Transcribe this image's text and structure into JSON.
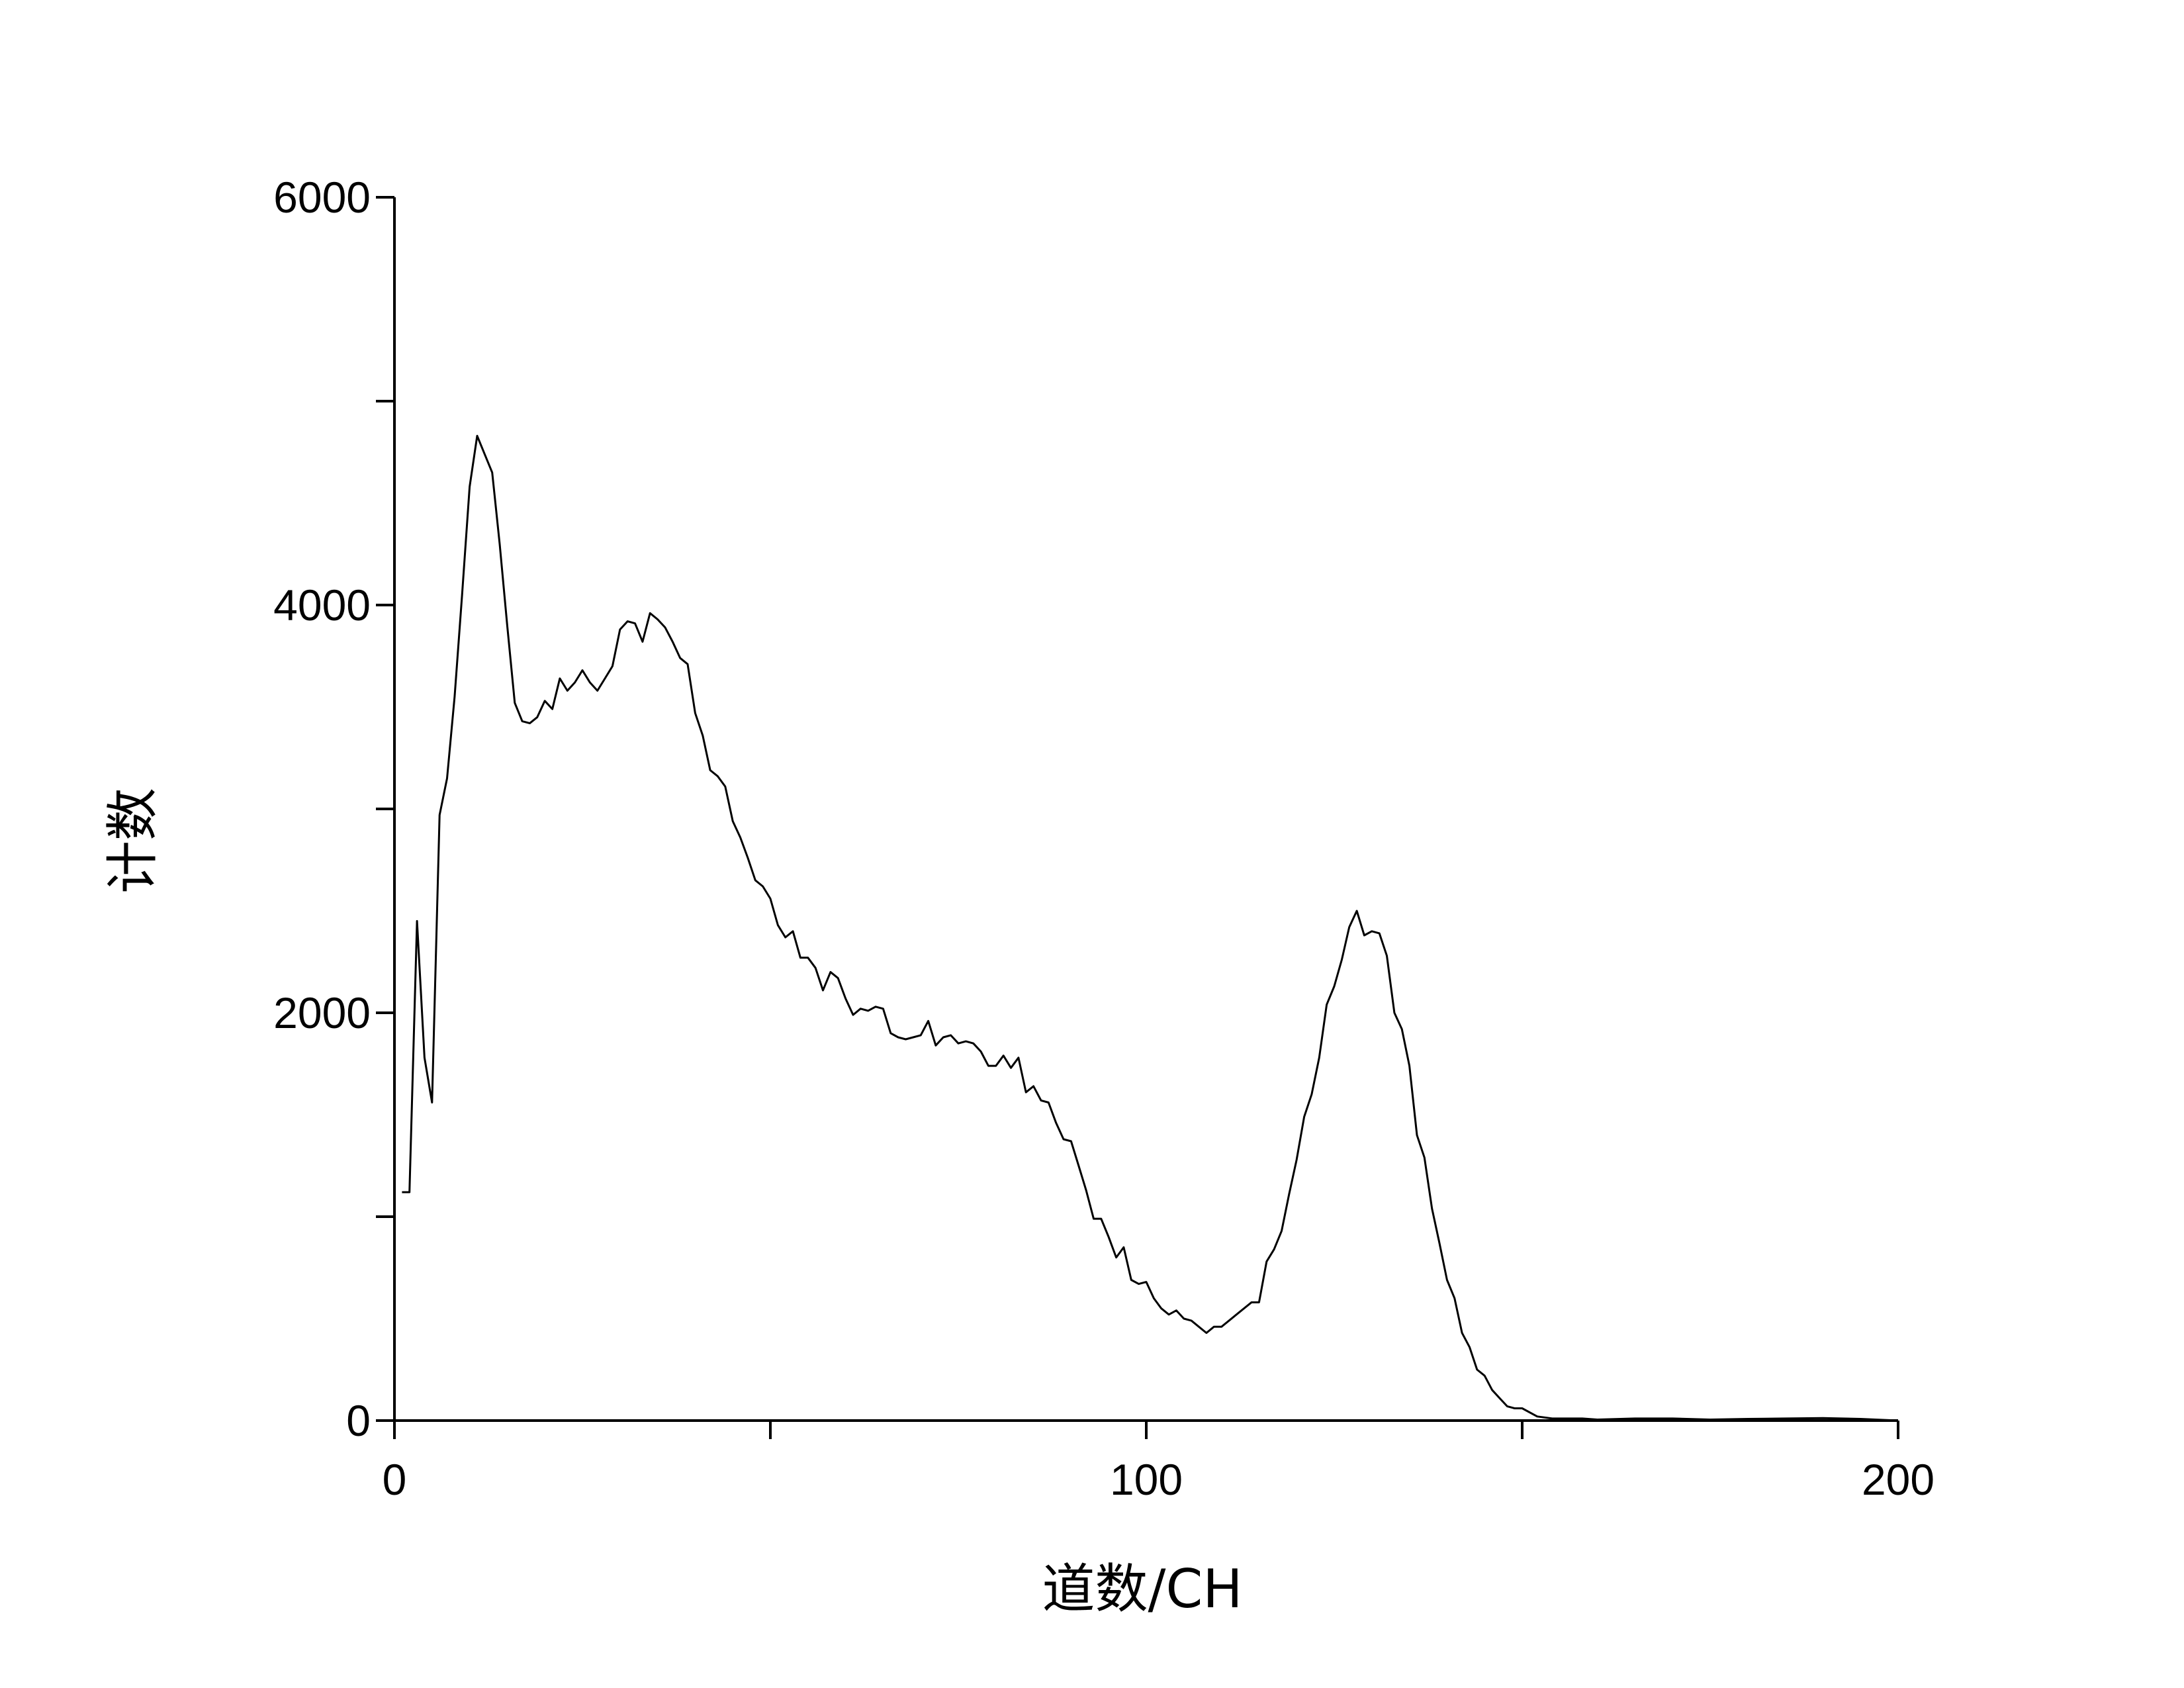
{
  "chart_data": {
    "type": "line",
    "title": "",
    "xlabel": "道数/CH",
    "ylabel": "计数",
    "xlim": [
      0,
      200
    ],
    "ylim": [
      0,
      6000
    ],
    "x_ticks": [
      0,
      50,
      100,
      150,
      200
    ],
    "x_tick_labels": [
      "0",
      "",
      "100",
      "",
      "200"
    ],
    "y_ticks": [
      0,
      1000,
      2000,
      3000,
      4000,
      5000,
      6000
    ],
    "y_tick_labels": [
      "0",
      "",
      "2000",
      "",
      "4000",
      "",
      "6000"
    ],
    "grid": false,
    "legend": "none",
    "line_color": "#000000",
    "series": [
      {
        "x": [
          1,
          2,
          3,
          4,
          5,
          6,
          7,
          8,
          9,
          10,
          11,
          12,
          13,
          14,
          15,
          16,
          17,
          18,
          19,
          20,
          21,
          22,
          23,
          24,
          25,
          26,
          27,
          28,
          29,
          30,
          31,
          32,
          33,
          34,
          35,
          36,
          37,
          38,
          39,
          40,
          41,
          42,
          43,
          44,
          45,
          46,
          47,
          48,
          49,
          50,
          51,
          52,
          53,
          54,
          55,
          56,
          57,
          58,
          59,
          60,
          61,
          62,
          63,
          64,
          65,
          66,
          67,
          68,
          69,
          70,
          71,
          72,
          73,
          74,
          75,
          76,
          77,
          78,
          79,
          80,
          81,
          82,
          83,
          84,
          85,
          86,
          87,
          88,
          89,
          90,
          91,
          92,
          93,
          94,
          95,
          96,
          97,
          98,
          99,
          100,
          101,
          102,
          103,
          104,
          105,
          106,
          107,
          108,
          109,
          110,
          111,
          112,
          113,
          114,
          115,
          116,
          117,
          118,
          119,
          120,
          121,
          122,
          123,
          124,
          125,
          126,
          127,
          128,
          129,
          130,
          131,
          132,
          133,
          134,
          135,
          136,
          137,
          138,
          139,
          140,
          141,
          142,
          143,
          144,
          145,
          146,
          147,
          148,
          149,
          150,
          152,
          154,
          156,
          158,
          160,
          165,
          170,
          175,
          180,
          185,
          190,
          195,
          200
        ],
        "y": [
          1120,
          1120,
          2450,
          1780,
          1560,
          2970,
          3150,
          3550,
          4050,
          4580,
          4830,
          4740,
          4650,
          4300,
          3900,
          3520,
          3430,
          3420,
          3450,
          3530,
          3490,
          3640,
          3580,
          3620,
          3680,
          3620,
          3580,
          3640,
          3700,
          3880,
          3920,
          3910,
          3820,
          3960,
          3930,
          3890,
          3820,
          3740,
          3710,
          3470,
          3360,
          3190,
          3160,
          3110,
          2940,
          2860,
          2760,
          2650,
          2620,
          2560,
          2430,
          2370,
          2400,
          2270,
          2270,
          2220,
          2110,
          2200,
          2170,
          2070,
          1990,
          2020,
          2010,
          2030,
          2020,
          1900,
          1880,
          1870,
          1880,
          1890,
          1960,
          1840,
          1880,
          1890,
          1850,
          1860,
          1850,
          1810,
          1740,
          1740,
          1790,
          1730,
          1780,
          1610,
          1640,
          1570,
          1560,
          1460,
          1380,
          1370,
          1250,
          1130,
          990,
          990,
          900,
          800,
          850,
          690,
          670,
          680,
          600,
          550,
          520,
          540,
          500,
          490,
          460,
          430,
          460,
          460,
          490,
          520,
          550,
          580,
          580,
          780,
          840,
          930,
          1110,
          1280,
          1490,
          1600,
          1780,
          2040,
          2130,
          2260,
          2420,
          2500,
          2380,
          2400,
          2390,
          2280,
          2000,
          1920,
          1740,
          1400,
          1290,
          1040,
          870,
          690,
          600,
          430,
          360,
          250,
          220,
          150,
          110,
          70,
          60,
          60,
          20,
          10,
          10,
          10,
          5,
          10,
          10,
          5,
          8,
          10,
          12,
          8,
          0
        ]
      }
    ]
  }
}
